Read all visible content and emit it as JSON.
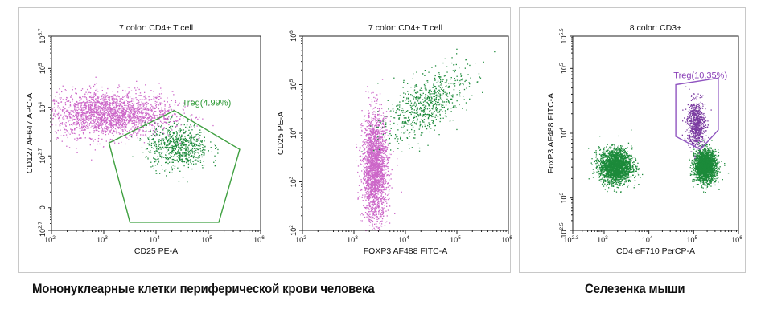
{
  "panels": {
    "human_caption": "Мононуклеарные клетки периферической крови человека",
    "mouse_caption": "Селезенка мыши"
  },
  "colors": {
    "pink_events": "#cc66c8",
    "green_events": "#1c8a3a",
    "purple_events": "#7a3aa0",
    "gate_green": "#3fa040",
    "gate_purple": "#9055c0",
    "label_green": "#2e9a36",
    "label_purple": "#8a40b8"
  },
  "chart_data": [
    {
      "type": "scatter",
      "title": "7 color: CD4+ T cell",
      "xlabel": "CD25 PE-A",
      "ylabel": "CD127 AF647 APC-A",
      "x_scale": "log",
      "y_scale": "biexponential",
      "x_ticks": [
        {
          "base": "10",
          "exp": "2"
        },
        {
          "base": "10",
          "exp": "3"
        },
        {
          "base": "10",
          "exp": "4"
        },
        {
          "base": "10",
          "exp": "5"
        },
        {
          "base": "10",
          "exp": "6"
        }
      ],
      "y_ticks": [
        {
          "base": "-10",
          "exp": "2.7"
        },
        {
          "base": "0",
          "exp": ""
        },
        {
          "base": "10",
          "exp": "2.7"
        },
        {
          "base": "10",
          "exp": "4"
        },
        {
          "base": "10",
          "exp": "5"
        },
        {
          "base": "10",
          "exp": "5.7"
        }
      ],
      "series": [
        {
          "color": "pink",
          "cluster": {
            "x_center": 3.1,
            "x_spread": 0.6,
            "y_center": 3.6,
            "y_spread": 0.35,
            "density": "high"
          }
        },
        {
          "color": "green",
          "cluster": {
            "x_center": 4.4,
            "x_spread": 0.3,
            "y_center": 2.6,
            "y_spread": 0.35,
            "density": "medium"
          }
        }
      ],
      "gate": {
        "label": "Treg(4.99%)",
        "shape": "pentagon",
        "color": "green"
      }
    },
    {
      "type": "scatter",
      "title": "7 color: CD4+ T cell",
      "xlabel": "FOXP3 AF488 FITC-A",
      "ylabel": "CD25 PE-A",
      "x_scale": "log",
      "y_scale": "log",
      "x_ticks": [
        {
          "base": "10",
          "exp": "2"
        },
        {
          "base": "10",
          "exp": "3"
        },
        {
          "base": "10",
          "exp": "4"
        },
        {
          "base": "10",
          "exp": "5"
        },
        {
          "base": "10",
          "exp": "6"
        }
      ],
      "y_ticks": [
        {
          "base": "10",
          "exp": "2"
        },
        {
          "base": "10",
          "exp": "3"
        },
        {
          "base": "10",
          "exp": "4"
        },
        {
          "base": "10",
          "exp": "5"
        },
        {
          "base": "10",
          "exp": "6"
        }
      ],
      "series": [
        {
          "color": "pink",
          "cluster": {
            "x_center": 3.4,
            "x_spread": 0.12,
            "y_center": 3.3,
            "y_spread": 0.55,
            "density": "high"
          }
        },
        {
          "color": "green",
          "cluster": {
            "x_center": 4.4,
            "x_spread": 0.4,
            "y_center": 4.6,
            "y_spread": 0.3,
            "density": "medium",
            "trend": "rising"
          }
        }
      ],
      "gate": null
    },
    {
      "type": "scatter",
      "title": "8 color: CD3+",
      "xlabel": "CD4 eF710 PerCP-A",
      "ylabel": "FoxP3 AF488 FITC-A",
      "x_scale": "log",
      "y_scale": "log",
      "x_ticks": [
        {
          "base": "10",
          "exp": "2.3"
        },
        {
          "base": "10",
          "exp": "3"
        },
        {
          "base": "10",
          "exp": "4"
        },
        {
          "base": "10",
          "exp": "5"
        },
        {
          "base": "10",
          "exp": "6"
        }
      ],
      "y_ticks": [
        {
          "base": "10",
          "exp": "2.5"
        },
        {
          "base": "10",
          "exp": "3"
        },
        {
          "base": "10",
          "exp": "4"
        },
        {
          "base": "10",
          "exp": "5"
        },
        {
          "base": "10",
          "exp": "5.5"
        }
      ],
      "series": [
        {
          "color": "green",
          "cluster": {
            "x_center": 3.25,
            "x_spread": 0.18,
            "y_center": 3.5,
            "y_spread": 0.13,
            "density": "high"
          }
        },
        {
          "color": "green",
          "cluster": {
            "x_center": 5.25,
            "x_spread": 0.12,
            "y_center": 3.5,
            "y_spread": 0.12,
            "density": "high"
          }
        },
        {
          "color": "purple",
          "cluster": {
            "x_center": 5.05,
            "x_spread": 0.1,
            "y_center": 4.15,
            "y_spread": 0.18,
            "density": "medium"
          }
        }
      ],
      "gate": {
        "label": "Treg(10.35%)",
        "shape": "polygon",
        "color": "purple"
      }
    }
  ]
}
